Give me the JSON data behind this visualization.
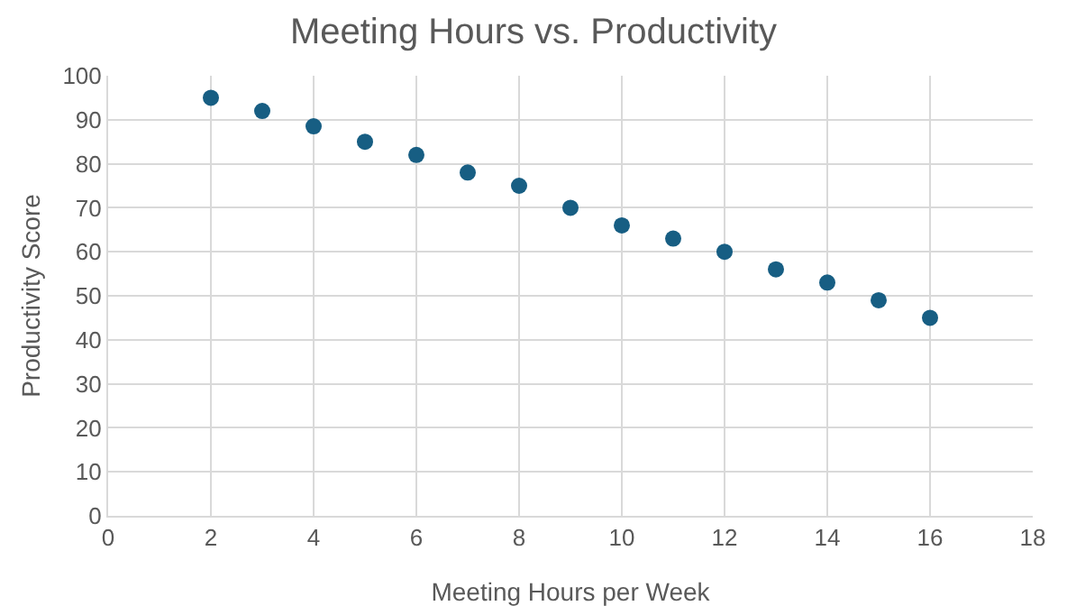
{
  "chart_data": {
    "type": "scatter",
    "title": "Meeting Hours vs. Productivity",
    "xlabel": "Meeting Hours per Week",
    "ylabel": "Productivity Score",
    "x": [
      2,
      3,
      4,
      5,
      6,
      7,
      8,
      9,
      10,
      11,
      12,
      13,
      14,
      15,
      16
    ],
    "values": [
      95,
      92,
      88.5,
      85,
      82,
      78,
      75,
      70,
      66,
      63,
      60,
      56,
      53,
      49,
      45
    ],
    "color": "#175e83",
    "marker": "circle",
    "grid": true,
    "xlim": [
      0,
      18
    ],
    "xticks": [
      0,
      2,
      4,
      6,
      8,
      10,
      12,
      14,
      16,
      18
    ],
    "ylim": [
      0,
      100
    ],
    "yticks": [
      0,
      10,
      20,
      30,
      40,
      50,
      60,
      70,
      80,
      90,
      100
    ]
  }
}
